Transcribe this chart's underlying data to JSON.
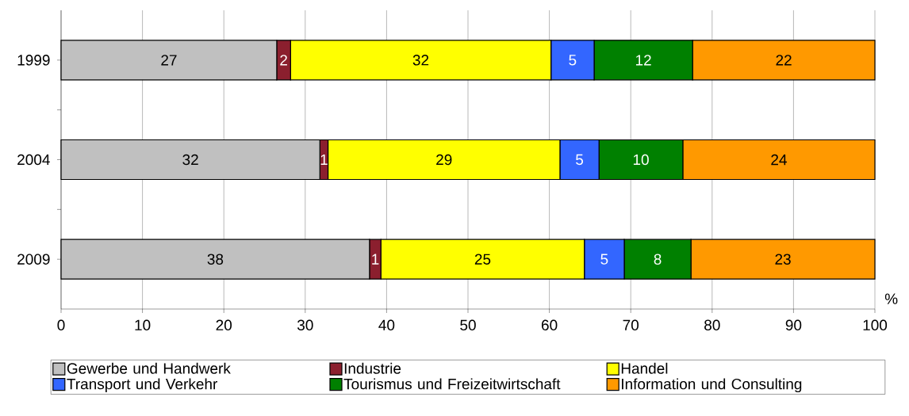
{
  "chart_data": {
    "type": "bar",
    "orientation": "horizontal",
    "stacked": true,
    "categories": [
      "1999",
      "2004",
      "2009"
    ],
    "series": [
      {
        "name": "Gewerbe und Handwerk",
        "color": "#c0c0c0",
        "values": [
          26.5,
          31.8,
          37.9
        ],
        "value_labels": [
          "27",
          "32",
          "38"
        ]
      },
      {
        "name": "Industrie",
        "color": "#8b1f2e",
        "values": [
          1.7,
          1.0,
          1.4
        ],
        "value_labels": [
          "2",
          "1",
          "1"
        ]
      },
      {
        "name": "Handel",
        "color": "#ffff00",
        "values": [
          32.0,
          28.5,
          25.0
        ],
        "value_labels": [
          "32",
          "29",
          "25"
        ]
      },
      {
        "name": "Transport und Verkehr",
        "color": "#3366ff",
        "values": [
          5.3,
          4.8,
          4.9
        ],
        "value_labels": [
          "5",
          "5",
          "5"
        ]
      },
      {
        "name": "Tourismus und Freizeitwirtschaft",
        "color": "#008000",
        "values": [
          12.1,
          10.3,
          8.2
        ],
        "value_labels": [
          "12",
          "10",
          "8"
        ]
      },
      {
        "name": "Information und Consulting",
        "color": "#ff9900",
        "values": [
          22.4,
          23.6,
          22.6
        ],
        "value_labels": [
          "22",
          "24",
          "23"
        ]
      }
    ],
    "xlabel": "%",
    "xlim": [
      0,
      100
    ],
    "xticks": [
      0,
      10,
      20,
      30,
      40,
      50,
      60,
      70,
      80,
      90,
      100
    ],
    "grid": "x",
    "legend": "bottom"
  }
}
